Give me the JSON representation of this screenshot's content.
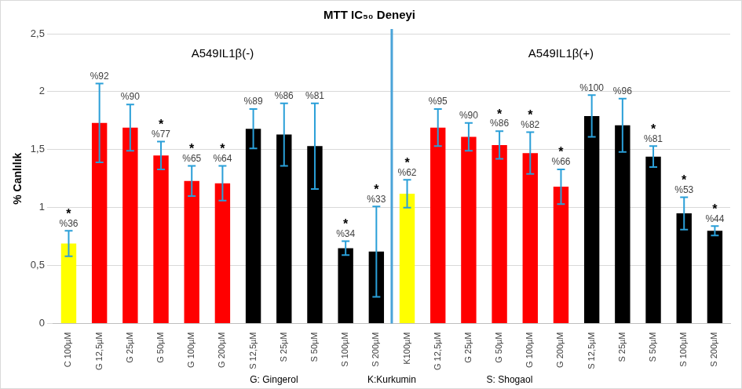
{
  "chart_data": {
    "type": "bar",
    "title": "MTT IC₅₀ Deneyi",
    "y_label": "% Canlılık",
    "categories": [
      "C 100µM",
      "G 12,5µM",
      "G 25µM",
      "G 50µM",
      "G 100µM",
      "G 200µM",
      "S 12,5µM",
      "S 25µM",
      "S 50µM",
      "S 100µM",
      "S 200µM",
      "K100µM",
      "G 12,5µM",
      "G 25µM",
      "G 50µM",
      "G 100µM",
      "G 200µM",
      "S 12,5µM",
      "S 25µM",
      "S 50µM",
      "S 100µM",
      "S 200µM"
    ],
    "values": [
      0.69,
      1.73,
      1.69,
      1.45,
      1.23,
      1.21,
      1.68,
      1.63,
      1.53,
      0.65,
      0.62,
      1.12,
      1.69,
      1.61,
      1.54,
      1.47,
      1.18,
      1.79,
      1.71,
      1.44,
      0.95,
      0.8
    ],
    "errors": [
      0.11,
      0.34,
      0.2,
      0.12,
      0.13,
      0.15,
      0.17,
      0.27,
      0.37,
      0.06,
      0.39,
      0.12,
      0.16,
      0.12,
      0.12,
      0.18,
      0.15,
      0.18,
      0.23,
      0.09,
      0.14,
      0.04
    ],
    "colors": [
      "#ffff00",
      "#ff0000",
      "#ff0000",
      "#ff0000",
      "#ff0000",
      "#ff0000",
      "#000000",
      "#000000",
      "#000000",
      "#000000",
      "#000000",
      "#ffff00",
      "#ff0000",
      "#ff0000",
      "#ff0000",
      "#ff0000",
      "#ff0000",
      "#000000",
      "#000000",
      "#000000",
      "#000000",
      "#000000"
    ],
    "percent_labels": [
      "%36",
      "%92",
      "%90",
      "%77",
      "%65",
      "%64",
      "%89",
      "%86",
      "%81",
      "%34",
      "%33",
      "%62",
      "%95",
      "%90",
      "%86",
      "%82",
      "%66",
      "%100",
      "%96",
      "%81",
      "%53",
      "%44"
    ],
    "significance": [
      "*",
      null,
      null,
      "*",
      "*",
      "*",
      null,
      null,
      null,
      "*",
      "*",
      "*",
      null,
      null,
      "*",
      "*",
      "*",
      null,
      null,
      "*",
      "*",
      "*"
    ],
    "groups": [
      {
        "label": "A549IL1β(-)",
        "from": 0,
        "to": 10
      },
      {
        "label": "A549IL1β(+)",
        "from": 11,
        "to": 21
      }
    ],
    "footnote": [
      "G: Gingerol",
      "K:Kurkumin",
      "S: Shogaol"
    ],
    "ylim": [
      0,
      2.5
    ],
    "yticks": [
      0,
      {
        "value": 0.5,
        "label": "0,5"
      },
      1,
      {
        "value": 1.5,
        "label": "1,5"
      },
      2,
      {
        "value": 2.5,
        "label": "2,5"
      }
    ],
    "grid": true
  }
}
